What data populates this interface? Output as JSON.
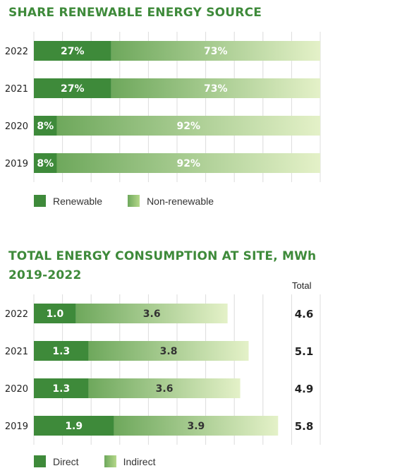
{
  "colors": {
    "title": "#3e8a3a",
    "primary": "#3e8a3a",
    "secondary_start": "#6ea85c",
    "secondary_end": "#e4f1c8"
  },
  "chart_data": [
    {
      "type": "bar",
      "orientation": "horizontal",
      "stacked": true,
      "title": "SHARE RENEWABLE ENERGY SOURCE",
      "categories": [
        "2022",
        "2021",
        "2020",
        "2019"
      ],
      "series": [
        {
          "name": "Renewable",
          "values": [
            27,
            27,
            8,
            8
          ],
          "labels": [
            "27%",
            "27%",
            "8%",
            "8%"
          ]
        },
        {
          "name": "Non-renewable",
          "values": [
            73,
            73,
            92,
            92
          ],
          "labels": [
            "73%",
            "73%",
            "92%",
            "92%"
          ]
        }
      ],
      "xlim": [
        0,
        100
      ],
      "grid": true,
      "legend": "bottom-left"
    },
    {
      "type": "bar",
      "orientation": "horizontal",
      "stacked": true,
      "title": "TOTAL ENERGY CONSUMPTION AT SITE, MWh 2019-2022",
      "categories": [
        "2022",
        "2021",
        "2020",
        "2019"
      ],
      "series": [
        {
          "name": "Direct",
          "values": [
            1.0,
            1.3,
            1.3,
            1.9
          ],
          "labels": [
            "1.0",
            "1.3",
            "1.3",
            "1.9"
          ]
        },
        {
          "name": "Indirect",
          "values": [
            3.6,
            3.8,
            3.6,
            3.9
          ],
          "labels": [
            "3.6",
            "3.8",
            "3.6",
            "3.9"
          ]
        }
      ],
      "totals_header": "Total",
      "totals": [
        "4.6",
        "5.1",
        "4.9",
        "5.8"
      ],
      "xlim": [
        0,
        6.8
      ],
      "grid": true,
      "legend": "bottom-left"
    }
  ]
}
